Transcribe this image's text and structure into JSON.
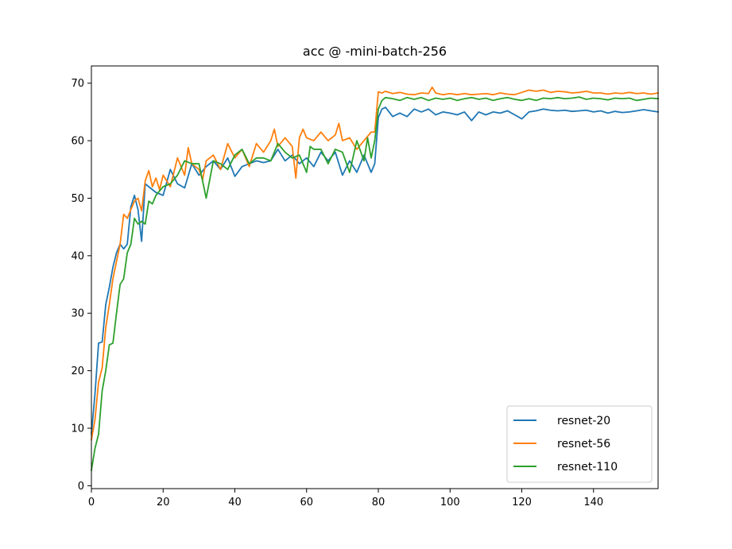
{
  "chart_data": {
    "type": "line",
    "title": "acc @ -mini-batch-256",
    "xlabel": "",
    "ylabel": "",
    "xlim": [
      0,
      158
    ],
    "ylim": [
      -0.5,
      73
    ],
    "xticks": [
      0,
      20,
      40,
      60,
      80,
      100,
      120,
      140
    ],
    "yticks": [
      0,
      10,
      20,
      30,
      40,
      50,
      60,
      70
    ],
    "grid": false,
    "legend_position": "lower-right",
    "series": [
      {
        "name": "resnet-20",
        "color": "#1f77b4",
        "keypoints": [
          [
            0,
            9
          ],
          [
            1,
            16
          ],
          [
            2,
            24.8
          ],
          [
            3,
            25
          ],
          [
            4,
            31.5
          ],
          [
            5,
            34.5
          ],
          [
            6,
            38
          ],
          [
            7,
            40.5
          ],
          [
            8,
            42
          ],
          [
            9,
            41.2
          ],
          [
            10,
            42
          ],
          [
            11,
            48.5
          ],
          [
            12,
            50.5
          ],
          [
            13,
            48
          ],
          [
            14,
            42.5
          ],
          [
            15,
            52.5
          ],
          [
            16,
            52
          ],
          [
            18,
            51
          ],
          [
            20,
            50.5
          ],
          [
            22,
            55
          ],
          [
            24,
            52.5
          ],
          [
            26,
            51.8
          ],
          [
            28,
            56
          ],
          [
            30,
            54
          ],
          [
            32,
            55.5
          ],
          [
            34,
            56.5
          ],
          [
            36,
            55
          ],
          [
            38,
            57
          ],
          [
            40,
            53.8
          ],
          [
            42,
            55.5
          ],
          [
            44,
            56
          ],
          [
            46,
            56.5
          ],
          [
            48,
            56.2
          ],
          [
            50,
            56.5
          ],
          [
            52,
            58.5
          ],
          [
            54,
            56.5
          ],
          [
            56,
            57.5
          ],
          [
            58,
            56
          ],
          [
            60,
            57
          ],
          [
            62,
            55.5
          ],
          [
            64,
            58
          ],
          [
            66,
            56.5
          ],
          [
            68,
            58
          ],
          [
            70,
            54
          ],
          [
            72,
            56.5
          ],
          [
            74,
            54.5
          ],
          [
            76,
            57.5
          ],
          [
            78,
            54.5
          ],
          [
            79,
            56
          ],
          [
            80,
            64
          ],
          [
            81,
            65.5
          ],
          [
            82,
            65.8
          ],
          [
            84,
            64.2
          ],
          [
            86,
            64.8
          ],
          [
            88,
            64.2
          ],
          [
            90,
            65.5
          ],
          [
            92,
            65
          ],
          [
            94,
            65.5
          ],
          [
            96,
            64.5
          ],
          [
            98,
            65
          ],
          [
            100,
            64.8
          ],
          [
            102,
            64.5
          ],
          [
            104,
            65
          ],
          [
            106,
            63.5
          ],
          [
            108,
            65
          ],
          [
            110,
            64.5
          ],
          [
            112,
            65
          ],
          [
            114,
            64.8
          ],
          [
            116,
            65.2
          ],
          [
            118,
            64.5
          ],
          [
            120,
            63.8
          ],
          [
            122,
            65
          ],
          [
            124,
            65.2
          ],
          [
            126,
            65.5
          ],
          [
            128,
            65.3
          ],
          [
            130,
            65.2
          ],
          [
            132,
            65.3
          ],
          [
            134,
            65.1
          ],
          [
            136,
            65.2
          ],
          [
            138,
            65.3
          ],
          [
            140,
            65
          ],
          [
            142,
            65.2
          ],
          [
            144,
            64.8
          ],
          [
            146,
            65.1
          ],
          [
            148,
            64.9
          ],
          [
            150,
            65
          ],
          [
            152,
            65.2
          ],
          [
            154,
            65.4
          ],
          [
            156,
            65.2
          ],
          [
            158,
            65
          ]
        ]
      },
      {
        "name": "resnet-56",
        "color": "#ff7f0e",
        "keypoints": [
          [
            0,
            8
          ],
          [
            1,
            11.5
          ],
          [
            2,
            18
          ],
          [
            3,
            20.5
          ],
          [
            4,
            27.5
          ],
          [
            5,
            31.5
          ],
          [
            6,
            36
          ],
          [
            7,
            39
          ],
          [
            8,
            42
          ],
          [
            9,
            47.2
          ],
          [
            10,
            46.5
          ],
          [
            11,
            48
          ],
          [
            12,
            49.5
          ],
          [
            13,
            50
          ],
          [
            14,
            47.8
          ],
          [
            15,
            53
          ],
          [
            16,
            54.8
          ],
          [
            17,
            52
          ],
          [
            18,
            53.5
          ],
          [
            19,
            51.5
          ],
          [
            20,
            54
          ],
          [
            22,
            52
          ],
          [
            24,
            57
          ],
          [
            26,
            54
          ],
          [
            27,
            58.8
          ],
          [
            28,
            56
          ],
          [
            30,
            55
          ],
          [
            31,
            53.2
          ],
          [
            32,
            56.5
          ],
          [
            34,
            57.5
          ],
          [
            36,
            55
          ],
          [
            38,
            59.5
          ],
          [
            40,
            57
          ],
          [
            42,
            58.5
          ],
          [
            44,
            55.5
          ],
          [
            46,
            59.5
          ],
          [
            48,
            58
          ],
          [
            50,
            60
          ],
          [
            51,
            62
          ],
          [
            52,
            59
          ],
          [
            54,
            60.5
          ],
          [
            56,
            59
          ],
          [
            57,
            53.5
          ],
          [
            58,
            60.5
          ],
          [
            59,
            62
          ],
          [
            60,
            60.5
          ],
          [
            62,
            60
          ],
          [
            64,
            61.5
          ],
          [
            66,
            60
          ],
          [
            68,
            61
          ],
          [
            69,
            63
          ],
          [
            70,
            60
          ],
          [
            72,
            60.5
          ],
          [
            74,
            58.5
          ],
          [
            76,
            60
          ],
          [
            78,
            61.5
          ],
          [
            79,
            61.5
          ],
          [
            80,
            68.5
          ],
          [
            81,
            68.3
          ],
          [
            82,
            68.6
          ],
          [
            84,
            68.2
          ],
          [
            86,
            68.4
          ],
          [
            88,
            68.1
          ],
          [
            90,
            68
          ],
          [
            92,
            68.3
          ],
          [
            94,
            68.2
          ],
          [
            95,
            69.3
          ],
          [
            96,
            68.3
          ],
          [
            98,
            68
          ],
          [
            100,
            68.2
          ],
          [
            102,
            68
          ],
          [
            104,
            68.2
          ],
          [
            106,
            68
          ],
          [
            108,
            68.1
          ],
          [
            110,
            68.2
          ],
          [
            112,
            68
          ],
          [
            114,
            68.3
          ],
          [
            116,
            68.1
          ],
          [
            118,
            68
          ],
          [
            120,
            68.4
          ],
          [
            122,
            68.8
          ],
          [
            124,
            68.6
          ],
          [
            126,
            68.8
          ],
          [
            128,
            68.4
          ],
          [
            130,
            68.6
          ],
          [
            132,
            68.5
          ],
          [
            134,
            68.3
          ],
          [
            136,
            68.4
          ],
          [
            138,
            68.6
          ],
          [
            140,
            68.3
          ],
          [
            142,
            68.3
          ],
          [
            144,
            68.1
          ],
          [
            146,
            68.3
          ],
          [
            148,
            68.2
          ],
          [
            150,
            68.4
          ],
          [
            152,
            68.2
          ],
          [
            154,
            68.3
          ],
          [
            156,
            68.1
          ],
          [
            158,
            68.3
          ]
        ]
      },
      {
        "name": "resnet-110",
        "color": "#2ca02c",
        "keypoints": [
          [
            0,
            2.7
          ],
          [
            1,
            6.5
          ],
          [
            2,
            9
          ],
          [
            3,
            16.5
          ],
          [
            4,
            20
          ],
          [
            5,
            24.5
          ],
          [
            6,
            24.8
          ],
          [
            7,
            30
          ],
          [
            8,
            35
          ],
          [
            9,
            36
          ],
          [
            10,
            40.5
          ],
          [
            11,
            42
          ],
          [
            12,
            46.5
          ],
          [
            13,
            45.5
          ],
          [
            14,
            46
          ],
          [
            15,
            45.5
          ],
          [
            16,
            49.5
          ],
          [
            17,
            49
          ],
          [
            18,
            50.5
          ],
          [
            20,
            52
          ],
          [
            22,
            52.5
          ],
          [
            24,
            54
          ],
          [
            26,
            56.5
          ],
          [
            28,
            56
          ],
          [
            30,
            56
          ],
          [
            32,
            50
          ],
          [
            34,
            56.5
          ],
          [
            36,
            56
          ],
          [
            38,
            55
          ],
          [
            40,
            57.5
          ],
          [
            42,
            58.5
          ],
          [
            44,
            56
          ],
          [
            46,
            57
          ],
          [
            48,
            57
          ],
          [
            50,
            56.5
          ],
          [
            52,
            59.5
          ],
          [
            54,
            58
          ],
          [
            56,
            57
          ],
          [
            58,
            57.5
          ],
          [
            60,
            54.5
          ],
          [
            61,
            59
          ],
          [
            62,
            58.5
          ],
          [
            64,
            58.5
          ],
          [
            66,
            56
          ],
          [
            68,
            58.5
          ],
          [
            70,
            58
          ],
          [
            72,
            54.5
          ],
          [
            74,
            60
          ],
          [
            76,
            56.5
          ],
          [
            77,
            60.5
          ],
          [
            78,
            57
          ],
          [
            79,
            60
          ],
          [
            80,
            65.5
          ],
          [
            81,
            67
          ],
          [
            82,
            67.5
          ],
          [
            84,
            67.3
          ],
          [
            86,
            67
          ],
          [
            88,
            67.5
          ],
          [
            90,
            67.2
          ],
          [
            92,
            67.5
          ],
          [
            94,
            67
          ],
          [
            96,
            67.4
          ],
          [
            98,
            67.2
          ],
          [
            100,
            67.4
          ],
          [
            102,
            67
          ],
          [
            104,
            67.3
          ],
          [
            106,
            67.5
          ],
          [
            108,
            67.2
          ],
          [
            110,
            67.4
          ],
          [
            112,
            67
          ],
          [
            114,
            67.3
          ],
          [
            116,
            67.5
          ],
          [
            118,
            67.2
          ],
          [
            120,
            67
          ],
          [
            122,
            67.3
          ],
          [
            124,
            67
          ],
          [
            126,
            67.4
          ],
          [
            128,
            67.3
          ],
          [
            130,
            67.5
          ],
          [
            132,
            67.3
          ],
          [
            134,
            67.4
          ],
          [
            136,
            67.6
          ],
          [
            138,
            67.2
          ],
          [
            140,
            67.4
          ],
          [
            142,
            67.3
          ],
          [
            144,
            67.1
          ],
          [
            146,
            67.4
          ],
          [
            148,
            67.3
          ],
          [
            150,
            67.4
          ],
          [
            152,
            67
          ],
          [
            154,
            67.2
          ],
          [
            156,
            67.4
          ],
          [
            158,
            67.3
          ]
        ]
      }
    ]
  }
}
